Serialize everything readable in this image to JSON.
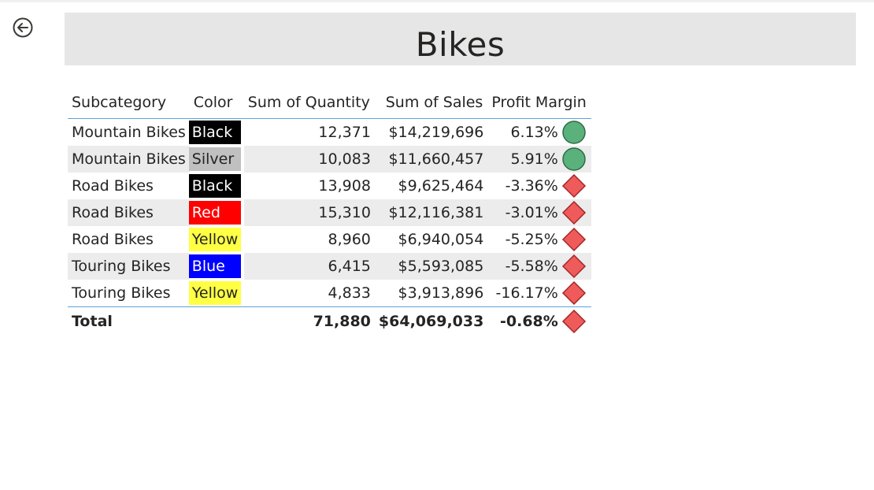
{
  "title": "Bikes",
  "colors": {
    "title_bg": "#e6e6e6",
    "row_alt_bg": "#ececec",
    "divider": "#5fa4d6",
    "kpi_good_fill": "#5ab17b",
    "kpi_good_stroke": "#2d6b45",
    "kpi_bad_fill": "#ef5b5b",
    "kpi_bad_stroke": "#a32626"
  },
  "table": {
    "headers": {
      "subcategory": "Subcategory",
      "color": "Color",
      "quantity": "Sum of Quantity",
      "sales": "Sum of Sales",
      "margin": "Profit Margin"
    },
    "rows": [
      {
        "subcategory": "Mountain Bikes",
        "color": "Black",
        "color_bg": "#000000",
        "color_fg": "#ffffff",
        "quantity": "12,371",
        "sales": "$14,219,696",
        "margin": "6.13%",
        "kpi": "green-circle"
      },
      {
        "subcategory": "Mountain Bikes",
        "color": "Silver",
        "color_bg": "#c0c0c0",
        "color_fg": "#252423",
        "quantity": "10,083",
        "sales": "$11,660,457",
        "margin": "5.91%",
        "kpi": "green-circle"
      },
      {
        "subcategory": "Road Bikes",
        "color": "Black",
        "color_bg": "#000000",
        "color_fg": "#ffffff",
        "quantity": "13,908",
        "sales": "$9,625,464",
        "margin": "-3.36%",
        "kpi": "red-diamond"
      },
      {
        "subcategory": "Road Bikes",
        "color": "Red",
        "color_bg": "#ff0000",
        "color_fg": "#ffffff",
        "quantity": "15,310",
        "sales": "$12,116,381",
        "margin": "-3.01%",
        "kpi": "red-diamond"
      },
      {
        "subcategory": "Road Bikes",
        "color": "Yellow",
        "color_bg": "#ffff44",
        "color_fg": "#252423",
        "quantity": "8,960",
        "sales": "$6,940,054",
        "margin": "-5.25%",
        "kpi": "red-diamond"
      },
      {
        "subcategory": "Touring Bikes",
        "color": "Blue",
        "color_bg": "#0000ff",
        "color_fg": "#ffffff",
        "quantity": "6,415",
        "sales": "$5,593,085",
        "margin": "-5.58%",
        "kpi": "red-diamond"
      },
      {
        "subcategory": "Touring Bikes",
        "color": "Yellow",
        "color_bg": "#ffff44",
        "color_fg": "#252423",
        "quantity": "4,833",
        "sales": "$3,913,896",
        "margin": "-16.17%",
        "kpi": "red-diamond"
      }
    ],
    "total": {
      "label": "Total",
      "quantity": "71,880",
      "sales": "$64,069,033",
      "margin": "-0.68%",
      "kpi": "red-diamond"
    }
  }
}
